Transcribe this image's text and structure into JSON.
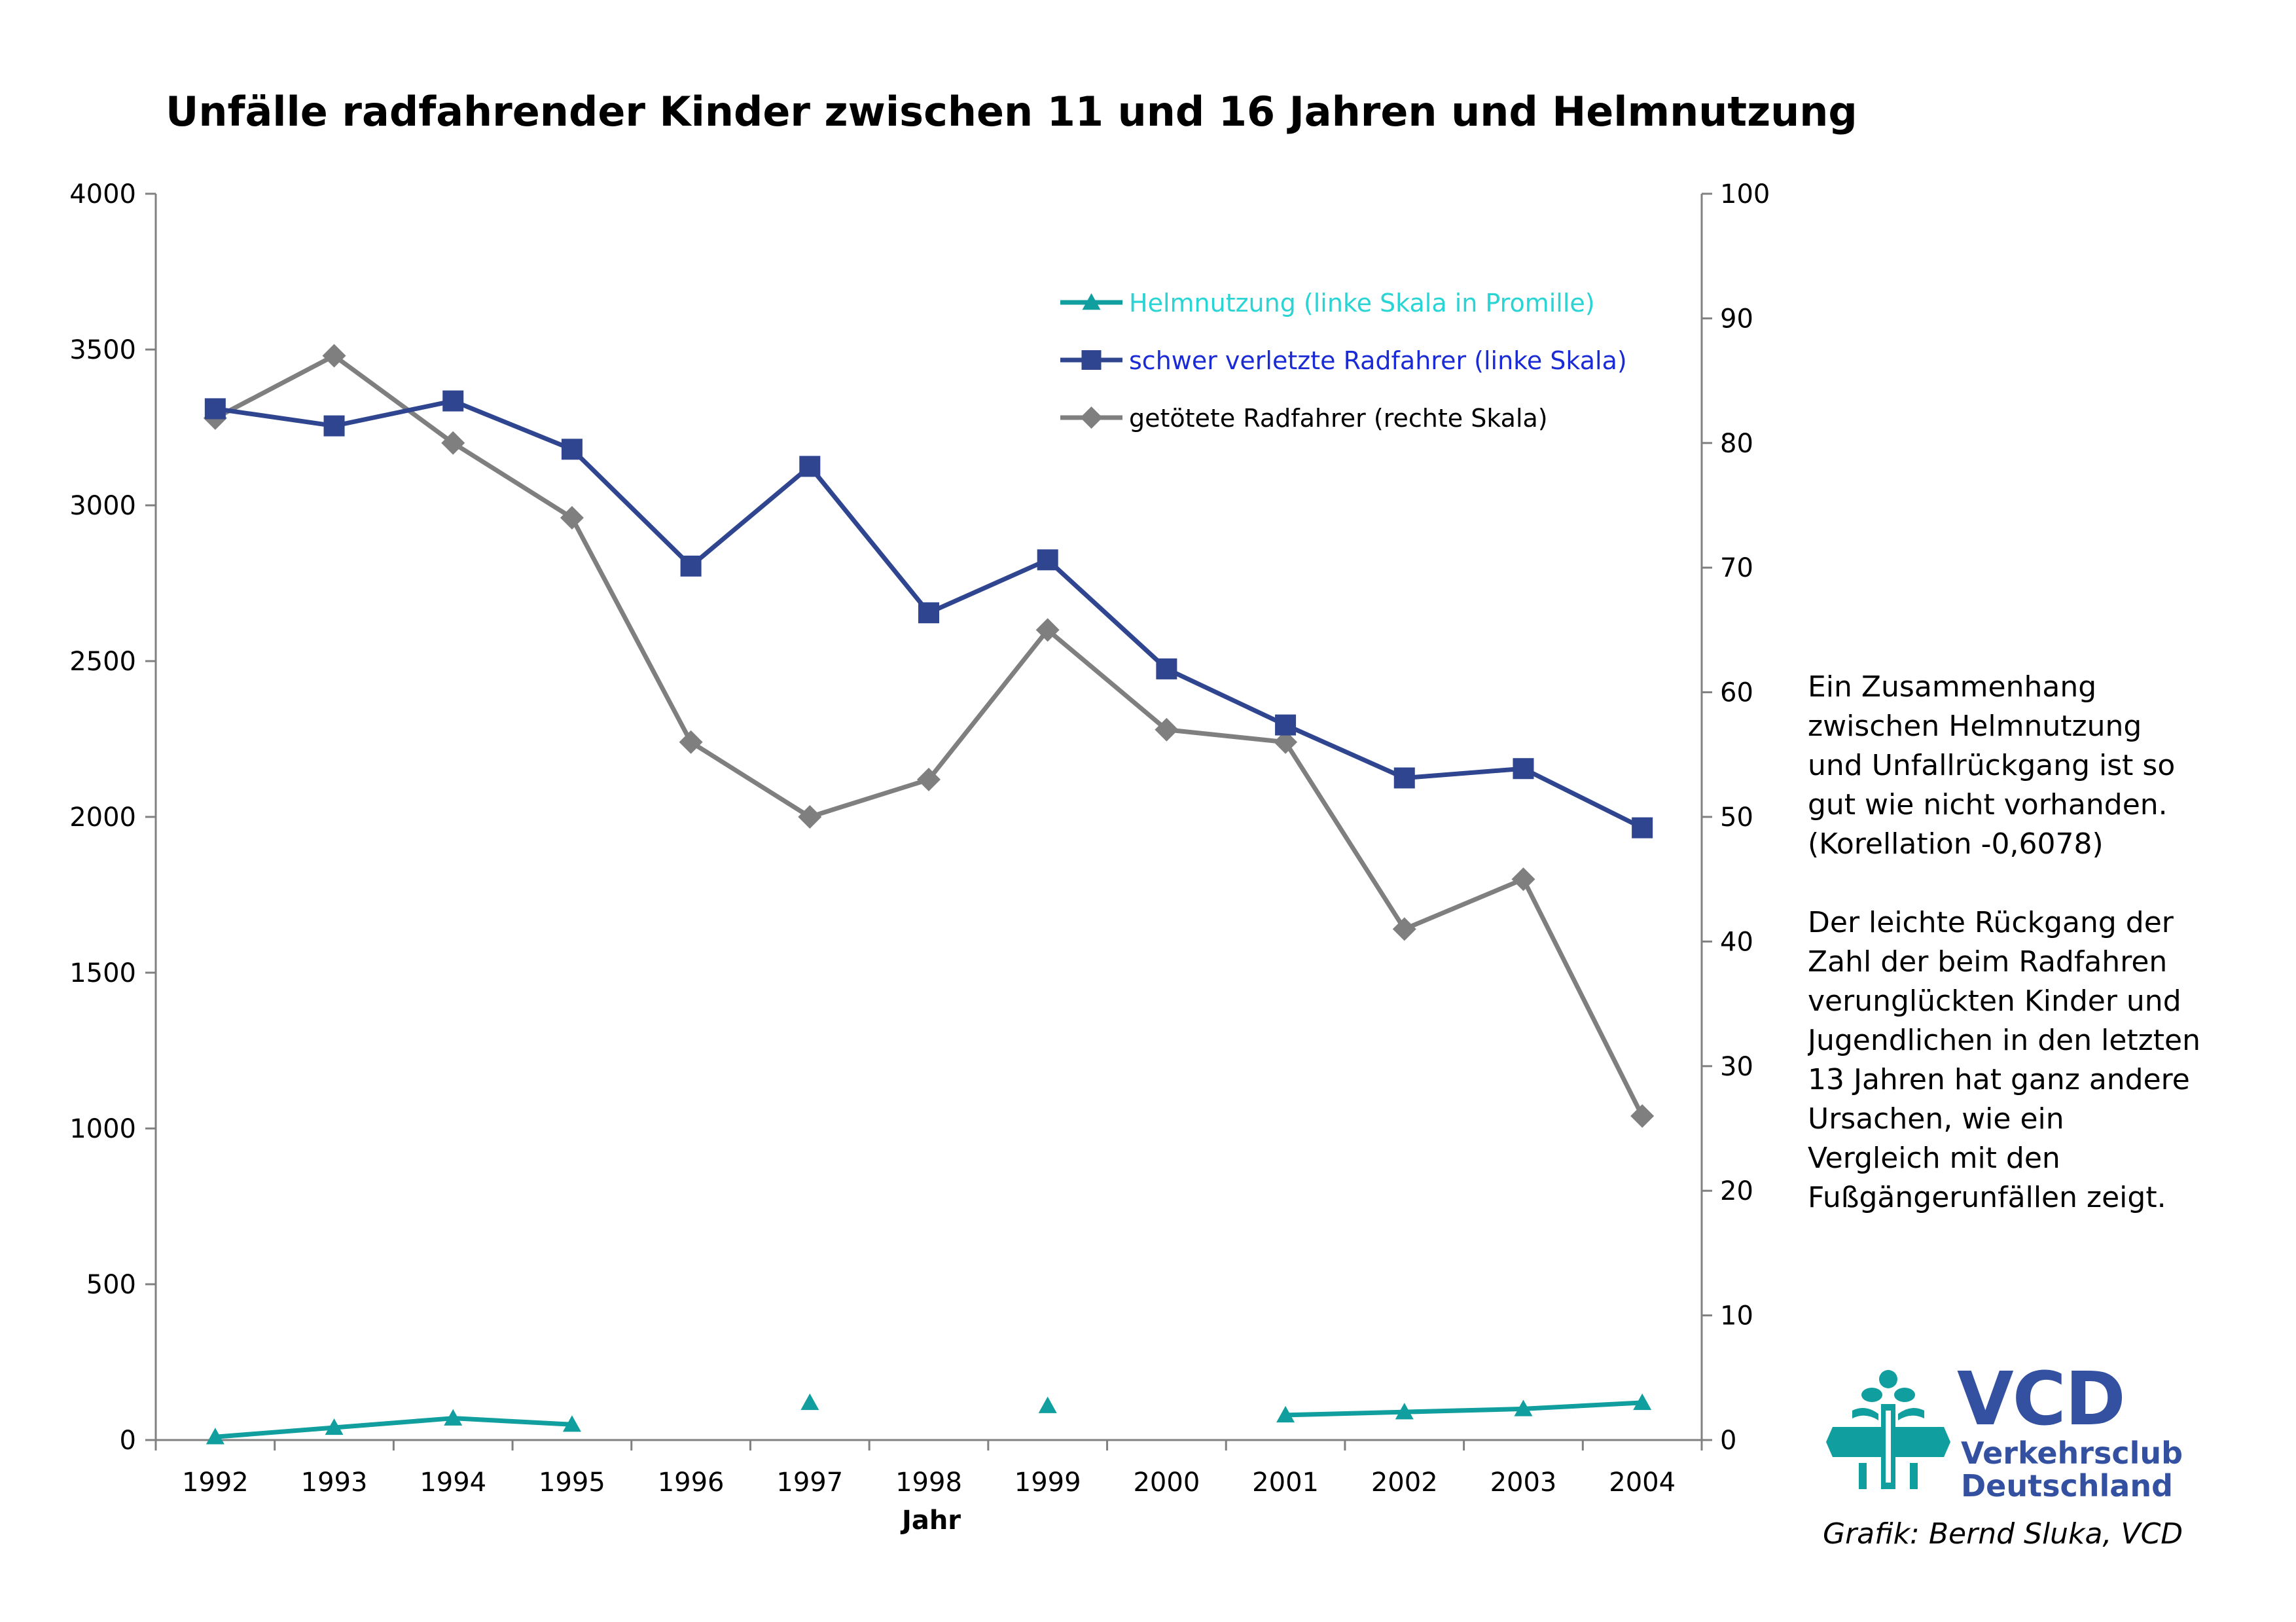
{
  "chart_data": {
    "type": "line",
    "title": "Unfälle radfahrender Kinder zwischen 11 und 16 Jahren und Helmnutzung",
    "xlabel": "Jahr",
    "categories": [
      "1992",
      "1993",
      "1994",
      "1995",
      "1996",
      "1997",
      "1998",
      "1999",
      "2000",
      "2001",
      "2002",
      "2003",
      "2004"
    ],
    "y_left": {
      "min": 0,
      "max": 4000,
      "ticks": [
        "0",
        "500",
        "1000",
        "1500",
        "2000",
        "2500",
        "3000",
        "3500",
        "4000"
      ]
    },
    "y_right": {
      "min": 0,
      "max": 100,
      "ticks": [
        "0",
        "10",
        "20",
        "30",
        "40",
        "50",
        "60",
        "70",
        "80",
        "90",
        "100"
      ]
    },
    "legend_position": "top-right inside plot",
    "series": [
      {
        "name": "Helmnutzung (linke Skala in Promille)",
        "axis": "left",
        "color": "#119e9e",
        "legend_text_color": "#2ad4d4",
        "marker": "triangle",
        "values": [
          10,
          40,
          70,
          50,
          null,
          120,
          null,
          110,
          null,
          80,
          90,
          100,
          120
        ]
      },
      {
        "name": "schwer verletzte Radfahrer (linke Skala)",
        "axis": "left",
        "color": "#2f4590",
        "legend_text_color": "#1a2bd6",
        "marker": "square",
        "values": [
          3310,
          3255,
          3335,
          3180,
          2805,
          3125,
          2655,
          2825,
          2475,
          2295,
          2125,
          2155,
          1965
        ]
      },
      {
        "name": "getötete Radfahrer (rechte Skala)",
        "axis": "right",
        "color": "#7f7f7f",
        "legend_text_color": "#000000",
        "marker": "diamond",
        "values": [
          82,
          87,
          80,
          74,
          56,
          50,
          53,
          65,
          57,
          56,
          41,
          45,
          26
        ]
      }
    ]
  },
  "note": {
    "paragraph1": "Ein Zusammenhang zwischen Helmnutzung und Unfallrückgang ist so gut wie nicht vorhanden. (Korellation -0,6078)",
    "paragraph2": "Der leichte Rückgang der Zahl der beim Radfahren verunglückten Kinder und Jugendlichen in den letzten 13 Jahren hat ganz andere Ursachen, wie ein Vergleich mit den Fußgängerunfällen zeigt."
  },
  "logo": {
    "name": "VCD",
    "line1": "Verkehrsclub",
    "line2": "Deutschland",
    "mark_color": "#119e9e",
    "text_color": "#3450a0"
  },
  "credit": "Grafik: Bernd Sluka, VCD"
}
